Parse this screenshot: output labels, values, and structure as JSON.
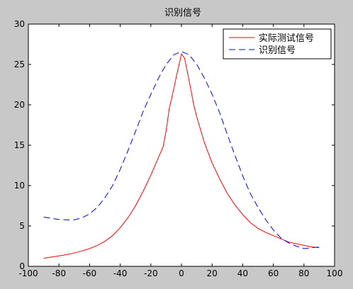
{
  "chart_data": {
    "type": "line",
    "title": "识别信号",
    "xlabel": "",
    "ylabel": "",
    "xlim": [
      -100,
      100
    ],
    "ylim": [
      0,
      30
    ],
    "xticks": [
      -100,
      -80,
      -60,
      -40,
      -20,
      0,
      20,
      40,
      60,
      80,
      100
    ],
    "yticks": [
      0,
      5,
      10,
      15,
      20,
      25,
      30
    ],
    "grid": false,
    "legend_position": "top-right",
    "series": [
      {
        "name": "实际测试信号",
        "color": "#ff0000",
        "style": "solid",
        "x": [
          -90,
          -85,
          -80,
          -75,
          -70,
          -65,
          -60,
          -55,
          -50,
          -45,
          -40,
          -35,
          -30,
          -25,
          -20,
          -15,
          -12,
          -10,
          -8,
          -5,
          -3,
          0,
          2,
          5,
          8,
          10,
          15,
          20,
          25,
          30,
          35,
          40,
          45,
          50,
          55,
          60,
          65,
          70,
          75,
          80,
          85,
          90
        ],
        "y": [
          1.0,
          1.15,
          1.3,
          1.45,
          1.65,
          1.9,
          2.2,
          2.6,
          3.1,
          3.8,
          4.8,
          6.0,
          7.5,
          9.3,
          11.3,
          13.5,
          14.8,
          16.8,
          19.5,
          22.0,
          23.8,
          26.3,
          25.8,
          23.0,
          20.0,
          18.5,
          15.3,
          12.8,
          10.8,
          9.0,
          7.6,
          6.4,
          5.4,
          4.7,
          4.2,
          3.8,
          3.4,
          3.0,
          2.8,
          2.6,
          2.4,
          2.3
        ]
      },
      {
        "name": "识别信号",
        "color": "#0000ff",
        "style": "dashed",
        "x": [
          -90,
          -85,
          -80,
          -75,
          -70,
          -65,
          -60,
          -55,
          -50,
          -45,
          -40,
          -35,
          -30,
          -25,
          -20,
          -15,
          -10,
          -5,
          0,
          5,
          10,
          15,
          20,
          25,
          30,
          35,
          40,
          45,
          50,
          55,
          60,
          65,
          70,
          75,
          80,
          85,
          90
        ],
        "y": [
          6.1,
          5.95,
          5.8,
          5.75,
          5.75,
          6.0,
          6.5,
          7.3,
          8.5,
          10.0,
          12.0,
          14.3,
          16.7,
          19.2,
          21.3,
          23.3,
          25.0,
          26.2,
          26.6,
          26.2,
          25.0,
          23.3,
          21.3,
          19.0,
          16.3,
          13.7,
          11.2,
          9.0,
          7.3,
          5.8,
          4.5,
          3.5,
          2.9,
          2.5,
          2.2,
          2.3,
          2.4
        ]
      }
    ]
  }
}
